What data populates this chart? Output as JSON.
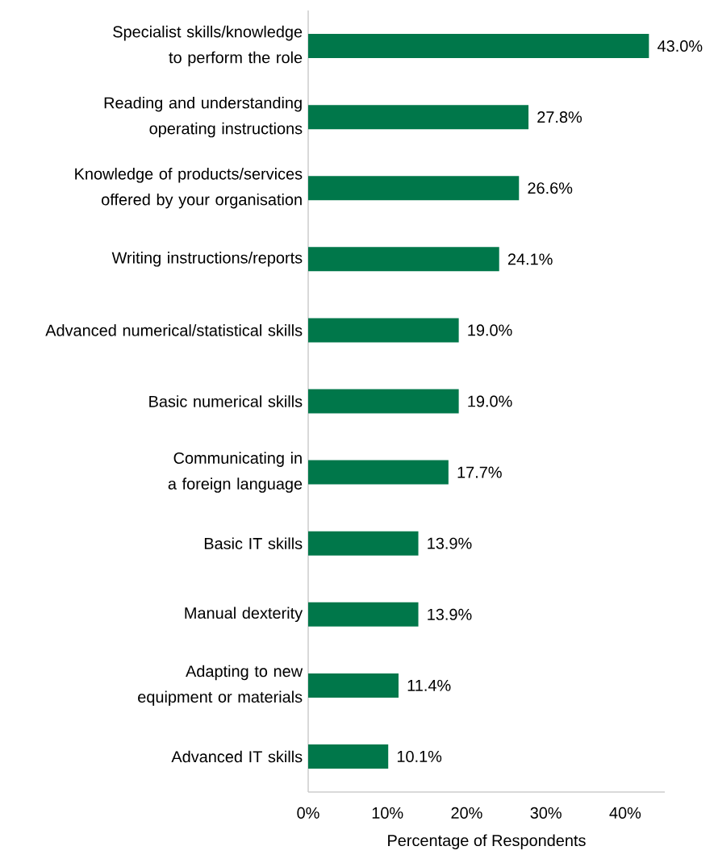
{
  "chart_data": {
    "type": "bar",
    "orientation": "horizontal",
    "xlabel": "Percentage of Respondents",
    "categories": [
      "Specialist skills/knowledge to perform the role",
      "Reading and understanding operating instructions",
      "Knowledge of products/services offered by your organisation",
      "Writing instructions/reports",
      "Advanced numerical/statistical skills",
      "Basic numerical skills",
      "Communicating in a foreign language",
      "Basic IT skills",
      "Manual dexterity",
      "Adapting to new equipment or materials",
      "Advanced IT skills"
    ],
    "values": [
      43.0,
      27.8,
      26.6,
      24.1,
      19.0,
      19.0,
      17.7,
      13.9,
      13.9,
      11.4,
      10.1
    ],
    "value_labels": [
      "43.0%",
      "27.8%",
      "26.6%",
      "24.1%",
      "19.0%",
      "19.0%",
      "17.7%",
      "13.9%",
      "13.9%",
      "11.4%",
      "10.1%"
    ],
    "color": "#00774a",
    "xticks": [
      {
        "value": 0,
        "label": "0%"
      },
      {
        "value": 10,
        "label": "10%"
      },
      {
        "value": 20,
        "label": "20%"
      },
      {
        "value": 30,
        "label": "30%"
      },
      {
        "value": 40,
        "label": "40%"
      }
    ],
    "xlim": [
      0,
      45
    ],
    "grid": false
  }
}
